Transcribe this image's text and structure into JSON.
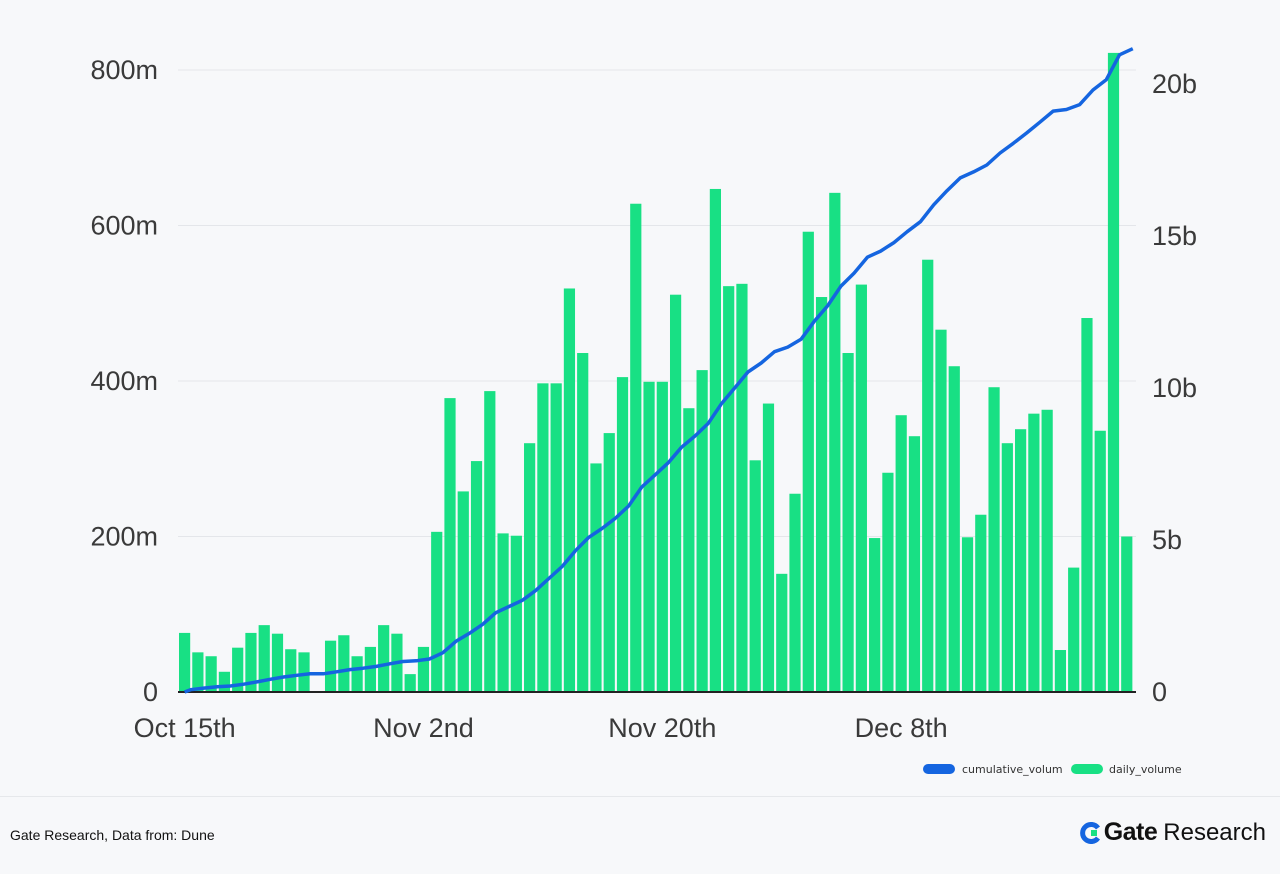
{
  "chart_data": {
    "type": "bar",
    "title": "",
    "xlabel": "",
    "ylabel": "",
    "start_date": "Oct 15th",
    "x_tick_labels": [
      {
        "label": "Oct 15th",
        "index": 0
      },
      {
        "label": "Nov 2nd",
        "index": 18
      },
      {
        "label": "Nov 20th",
        "index": 36
      },
      {
        "label": "Dec 8th",
        "index": 54
      }
    ],
    "left_axis": {
      "ticks": [
        "0",
        "200m",
        "400m",
        "600m",
        "800m"
      ],
      "tick_values": [
        0,
        200,
        400,
        600,
        800
      ],
      "range": [
        0,
        800
      ],
      "unit": "millions"
    },
    "right_axis": {
      "ticks": [
        "0",
        "5b",
        "10b",
        "15b",
        "20b"
      ],
      "tick_values": [
        0,
        5,
        10,
        15,
        20
      ],
      "range": [
        0,
        20.5
      ],
      "unit": "billions"
    },
    "grid": true,
    "legend_position": "bottom-right",
    "series": [
      {
        "name": "cumulative_volum",
        "type": "line",
        "axis": "right",
        "color": "#1565e0",
        "values": [
          0.076,
          0.127,
          0.173,
          0.199,
          0.256,
          0.332,
          0.418,
          0.493,
          0.548,
          0.599,
          0.599,
          0.665,
          0.738,
          0.784,
          0.842,
          0.928,
          1.003,
          1.026,
          1.084,
          1.29,
          1.668,
          1.926,
          2.223,
          2.61,
          2.814,
          3.015,
          3.335,
          3.732,
          4.129,
          4.648,
          5.084,
          5.378,
          5.711,
          6.116,
          6.744,
          7.143,
          7.542,
          8.053,
          8.418,
          8.832,
          9.479,
          10.001,
          10.526,
          10.824,
          11.195,
          11.347,
          11.602,
          12.194,
          12.702,
          13.344,
          13.78,
          14.304,
          14.502,
          14.784,
          15.14,
          15.469,
          16.025,
          16.491,
          16.91,
          17.109,
          17.337,
          17.729,
          18.049,
          18.387,
          18.745,
          19.108,
          19.162,
          19.322,
          19.803,
          20.139,
          20.961,
          21.161
        ]
      },
      {
        "name": "daily_volume",
        "type": "bar",
        "axis": "left",
        "color": "#18e084",
        "values": [
          76,
          51,
          46,
          26,
          57,
          76,
          86,
          75,
          55,
          51,
          0,
          66,
          73,
          46,
          58,
          86,
          75,
          23,
          58,
          206,
          378,
          258,
          297,
          387,
          204,
          201,
          320,
          397,
          397,
          519,
          436,
          294,
          333,
          405,
          628,
          399,
          399,
          511,
          365,
          414,
          647,
          522,
          525,
          298,
          371,
          152,
          255,
          592,
          508,
          642,
          436,
          524,
          198,
          282,
          356,
          329,
          556,
          466,
          419,
          199,
          228,
          392,
          320,
          338,
          358,
          363,
          54,
          160,
          481,
          336,
          822,
          200
        ]
      }
    ]
  },
  "footer": {
    "source": "Gate Research, Data from: Dune",
    "logo_brand": "Gate",
    "logo_suffix": "Research"
  }
}
